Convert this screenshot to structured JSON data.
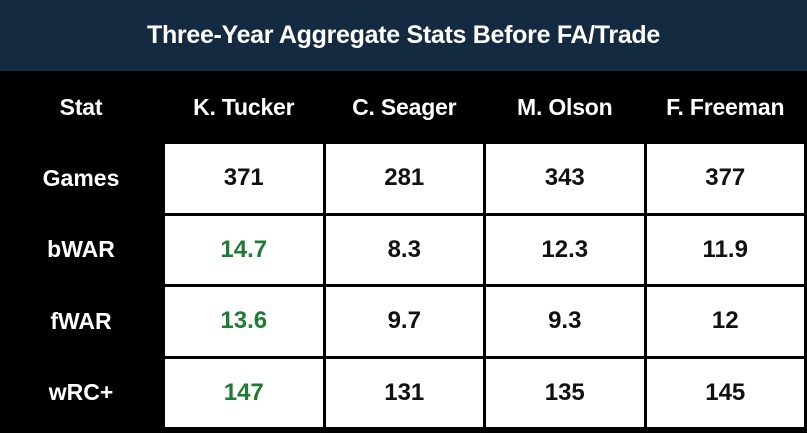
{
  "colors": {
    "banner_bg": "#132a40",
    "table_bg": "#000000",
    "cell_bg": "#ffffff",
    "header_text": "#ffffff",
    "value_text": "#111111",
    "highlight_green": "#1e7b33"
  },
  "chart_data": {
    "type": "table",
    "title": "Three-Year Aggregate Stats Before FA/Trade",
    "columns": [
      "Stat",
      "K. Tucker",
      "C. Seager",
      "M. Olson",
      "F. Freeman"
    ],
    "rows": [
      {
        "stat": "Games",
        "values": [
          "371",
          "281",
          "343",
          "377"
        ],
        "highlight": [
          false,
          false,
          false,
          false
        ]
      },
      {
        "stat": "bWAR",
        "values": [
          "14.7",
          "8.3",
          "12.3",
          "11.9"
        ],
        "highlight": [
          true,
          false,
          false,
          false
        ]
      },
      {
        "stat": "fWAR",
        "values": [
          "13.6",
          "9.7",
          "9.3",
          "12"
        ],
        "highlight": [
          true,
          false,
          false,
          false
        ]
      },
      {
        "stat": "wRC+",
        "values": [
          "147",
          "131",
          "135",
          "145"
        ],
        "highlight": [
          true,
          false,
          false,
          false
        ]
      }
    ],
    "legend_note": "K. Tucker's bWAR, fWAR and wRC+ values shown in green (category leader emphasis)"
  }
}
